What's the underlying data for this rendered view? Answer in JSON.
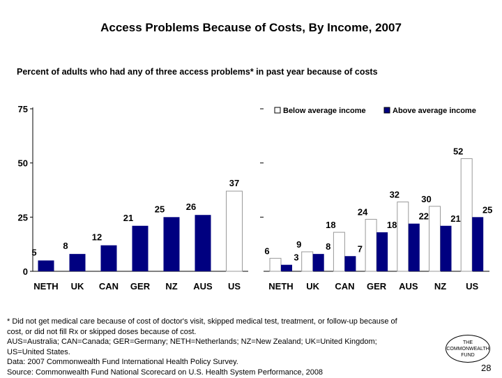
{
  "title": "Access Problems Because of Costs, By Income, 2007",
  "subtitle": "Percent of adults who had any of three access problems* in past year because of costs",
  "chart_data": [
    {
      "type": "bar",
      "categories": [
        "NETH",
        "UK",
        "CAN",
        "GER",
        "NZ",
        "AUS",
        "US"
      ],
      "values": [
        5,
        8,
        12,
        21,
        25,
        26,
        37
      ],
      "ylim": [
        0,
        75
      ],
      "yticks": [
        "0",
        "25",
        "50",
        "75"
      ],
      "bar_color": "#000080",
      "highlight_color": "#ffffff",
      "highlight_category": "US"
    },
    {
      "type": "bar",
      "categories": [
        "NETH",
        "UK",
        "CAN",
        "GER",
        "AUS",
        "NZ",
        "US"
      ],
      "series": [
        {
          "name": "Below average income",
          "values": [
            6,
            9,
            18,
            24,
            32,
            30,
            52
          ],
          "color": "#ffffff"
        },
        {
          "name": "Above average income",
          "values": [
            3,
            8,
            7,
            18,
            22,
            21,
            25
          ],
          "color": "#000080"
        }
      ],
      "ylim": [
        0,
        75
      ],
      "legend": "top"
    }
  ],
  "footnote": [
    "* Did not get medical care because of cost of doctor's visit, skipped medical test, treatment, or follow-up because of",
    "cost, or did not fill Rx or skipped doses because of cost.",
    "AUS=Australia; CAN=Canada; GER=Germany; NETH=Netherlands; NZ=New Zealand; UK=United Kingdom;",
    "US=United States.",
    "Data: 2007 Commonwealth Fund International Health Policy Survey.",
    "Source: Commonwealth Fund National Scorecard on U.S. Health System Performance, 2008"
  ],
  "logo": {
    "line1": "THE",
    "line2": "COMMONWEALTH",
    "line3": "FUND"
  },
  "page_number": "28"
}
